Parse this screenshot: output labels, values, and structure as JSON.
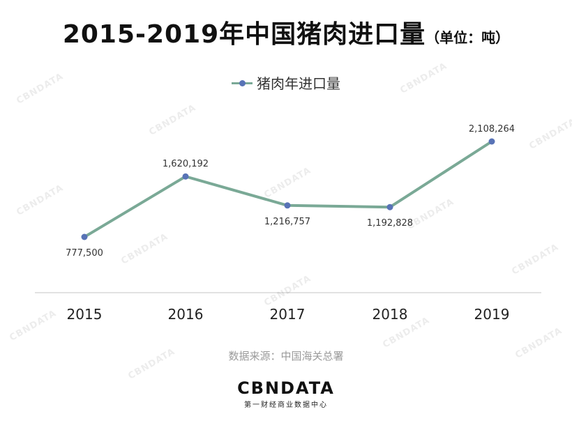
{
  "title": "2015-2019年中国猪肉进口量",
  "title_unit": "（单位：吨）",
  "legend_label": "猪肉年进口量",
  "source": "数据来源：中国海关总署",
  "logo": {
    "name": "CBNDATA",
    "tagline": "第一财经商业数据中心"
  },
  "watermark_text": "CBNDATA",
  "colors": {
    "line": "#7aa996",
    "marker": "#5873b6",
    "axis": "#d9d9d9",
    "label": "#333333"
  },
  "chart_data": {
    "type": "line",
    "title": "2015-2019年中国猪肉进口量",
    "unit": "吨",
    "categories": [
      "2015",
      "2016",
      "2017",
      "2018",
      "2019"
    ],
    "series": [
      {
        "name": "猪肉年进口量",
        "values": [
          777500,
          1620192,
          1216757,
          1192828,
          2108264
        ],
        "labels": [
          "777,500",
          "1,620,192",
          "1,216,757",
          "1,192,828",
          "2,108,264"
        ],
        "label_positions": [
          "below",
          "above",
          "below",
          "below",
          "above"
        ]
      }
    ],
    "grid": false,
    "legend_position": "top"
  }
}
